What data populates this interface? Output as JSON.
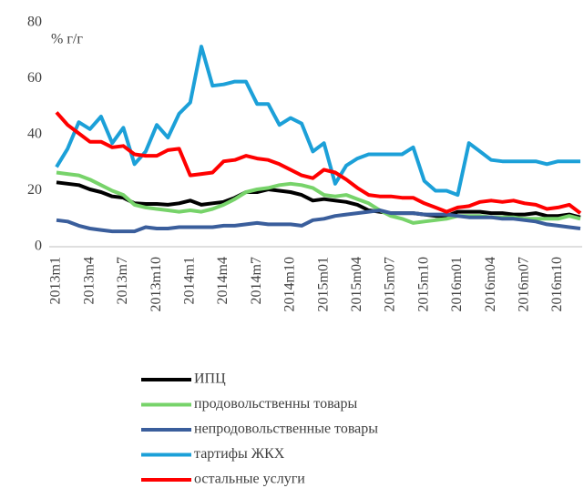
{
  "chart_data": {
    "type": "line",
    "y_label": "% г/г",
    "categories": [
      "2013m1",
      null,
      null,
      "2013m4",
      null,
      null,
      "2013m7",
      null,
      null,
      "2013m10",
      null,
      null,
      "2014m1",
      null,
      null,
      "2014m4",
      null,
      null,
      "2014m7",
      null,
      null,
      "2014m10",
      null,
      null,
      "2015m01",
      null,
      null,
      "2015m04",
      null,
      null,
      "2015m07",
      null,
      null,
      "2015m10",
      null,
      null,
      "2016m01",
      null,
      null,
      "2016m04",
      null,
      null,
      "2016m07",
      null,
      null,
      "2016m10",
      null,
      null
    ],
    "series": [
      {
        "name": "ИПЦ",
        "color": "#000000",
        "values": [
          23,
          22.5,
          22,
          20.5,
          19.5,
          18,
          17.5,
          15.5,
          15.3,
          15.3,
          15,
          15.5,
          16.5,
          15,
          15.5,
          16,
          17.5,
          19.5,
          19.5,
          20.5,
          20,
          19.5,
          18.5,
          16.5,
          17,
          16.5,
          16,
          15,
          13,
          12.5,
          12,
          12,
          12,
          11.5,
          11,
          11,
          12.5,
          12.5,
          12.5,
          12,
          12,
          11.5,
          11.5,
          12,
          11,
          11,
          11.5,
          10.5
        ]
      },
      {
        "name": "продовольственны товары",
        "color": "#77d36a",
        "values": [
          26.5,
          26,
          25.5,
          24,
          22,
          20,
          18.5,
          15,
          14,
          13.5,
          13,
          12.5,
          13,
          12.5,
          13.5,
          15,
          17,
          19.5,
          20.5,
          21,
          22,
          22.5,
          22,
          21,
          18.5,
          18,
          18.5,
          17,
          15.5,
          13,
          11,
          10,
          8.5,
          9,
          9.5,
          10,
          11,
          11,
          11,
          10.5,
          10.5,
          10.5,
          10,
          10,
          10,
          10,
          11,
          10
        ]
      },
      {
        "name": "непродовольственные товары",
        "color": "#3a5e9c",
        "values": [
          9.5,
          9,
          7.5,
          6.5,
          6,
          5.5,
          5.5,
          5.5,
          7,
          6.5,
          6.5,
          7,
          7,
          7,
          7,
          7.5,
          7.5,
          8,
          8.5,
          8,
          8,
          8,
          7.5,
          9.5,
          10,
          11,
          11.5,
          12,
          12.5,
          13,
          12,
          12,
          12,
          11.5,
          11.5,
          11.5,
          11,
          10.5,
          10.5,
          10.5,
          10,
          10,
          9.5,
          9,
          8,
          7.5,
          7,
          6.5
        ]
      },
      {
        "name": "тартифы ЖКХ",
        "color": "#1ca0d8",
        "values": [
          28.5,
          35,
          44.5,
          42,
          46.5,
          37,
          42.5,
          29.5,
          34,
          43.5,
          39,
          47.5,
          51.5,
          71.5,
          57.5,
          58,
          59,
          59,
          51,
          51,
          43.5,
          46,
          44,
          34,
          37,
          22.5,
          29,
          31.5,
          33,
          33,
          33,
          33,
          35.5,
          23.5,
          20,
          20,
          18.5,
          37,
          34,
          31,
          30.5,
          30.5,
          30.5,
          30.5,
          29.5,
          30.5,
          30.5,
          30.5
        ]
      },
      {
        "name": "остальные услуги",
        "color": "#ff0000",
        "values": [
          48,
          43.5,
          40.5,
          37.5,
          37.5,
          35.5,
          36,
          33,
          32.5,
          32.5,
          34.5,
          35,
          25.5,
          26,
          26.5,
          30.5,
          31,
          32.5,
          31.5,
          31,
          29.5,
          27.5,
          25.5,
          24.5,
          27.5,
          26.5,
          24,
          21,
          18.5,
          18,
          18,
          17.5,
          17.5,
          15.5,
          14,
          12.5,
          14,
          14.5,
          16,
          16.5,
          16,
          16.5,
          15.5,
          15,
          13.5,
          14,
          15,
          12
        ]
      }
    ],
    "ylim": [
      0,
      80
    ],
    "yticks": [
      0,
      20,
      40,
      60,
      80
    ],
    "grid": false,
    "legend": "bottom"
  }
}
